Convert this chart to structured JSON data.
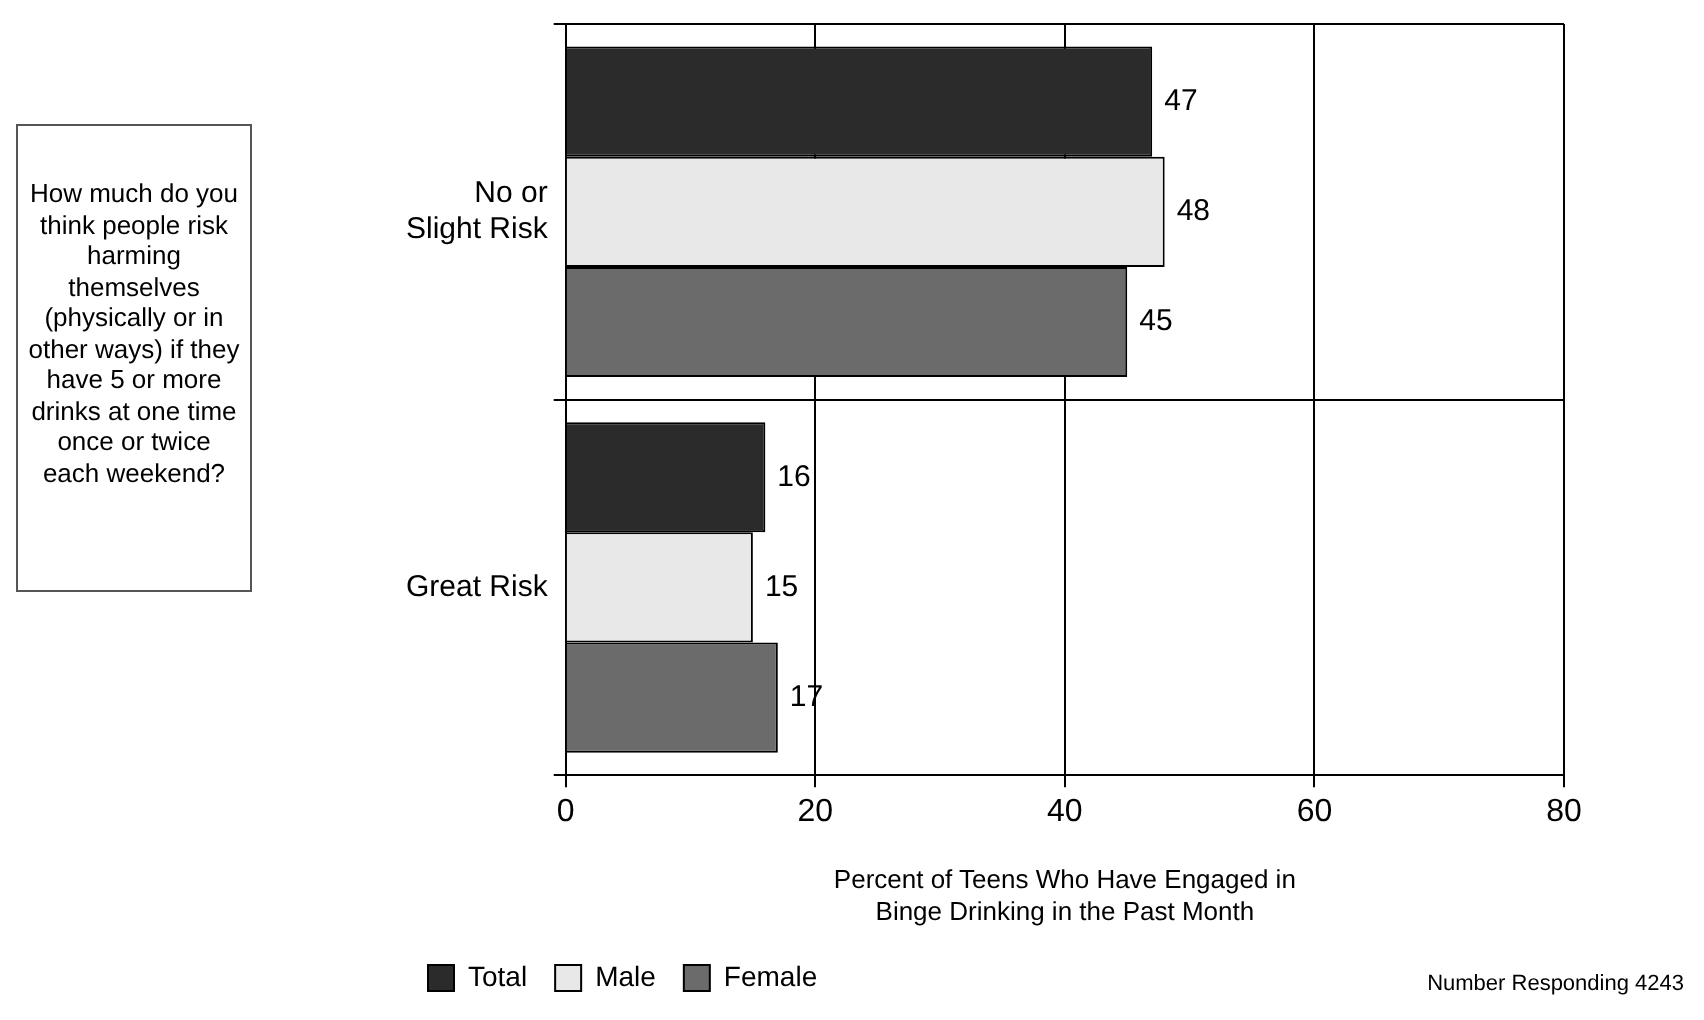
{
  "chart_data": {
    "type": "bar",
    "orientation": "horizontal",
    "categories": [
      "No or Slight Risk",
      "Great Risk"
    ],
    "series": [
      {
        "name": "Total",
        "color": "#2b2b2b",
        "values": [
          47,
          16
        ]
      },
      {
        "name": "Male",
        "color": "#e8e8e8",
        "values": [
          48,
          15
        ]
      },
      {
        "name": "Female",
        "color": "#6b6b6b",
        "values": [
          45,
          17
        ]
      }
    ],
    "xlabel": "Percent of Teens Who Have Engaged in Binge Drinking in the Past Month",
    "xlim": [
      0,
      80
    ],
    "xticks": [
      0,
      20,
      40,
      60,
      80
    ],
    "grid": true,
    "legend": "bottom left",
    "data_labels": true,
    "annotations": [
      "How much do you think people risk harming themselves (physically or in other ways)  if they have 5 or more drinks at one time once or twice each weekend?",
      "Number Responding 4243"
    ]
  }
}
